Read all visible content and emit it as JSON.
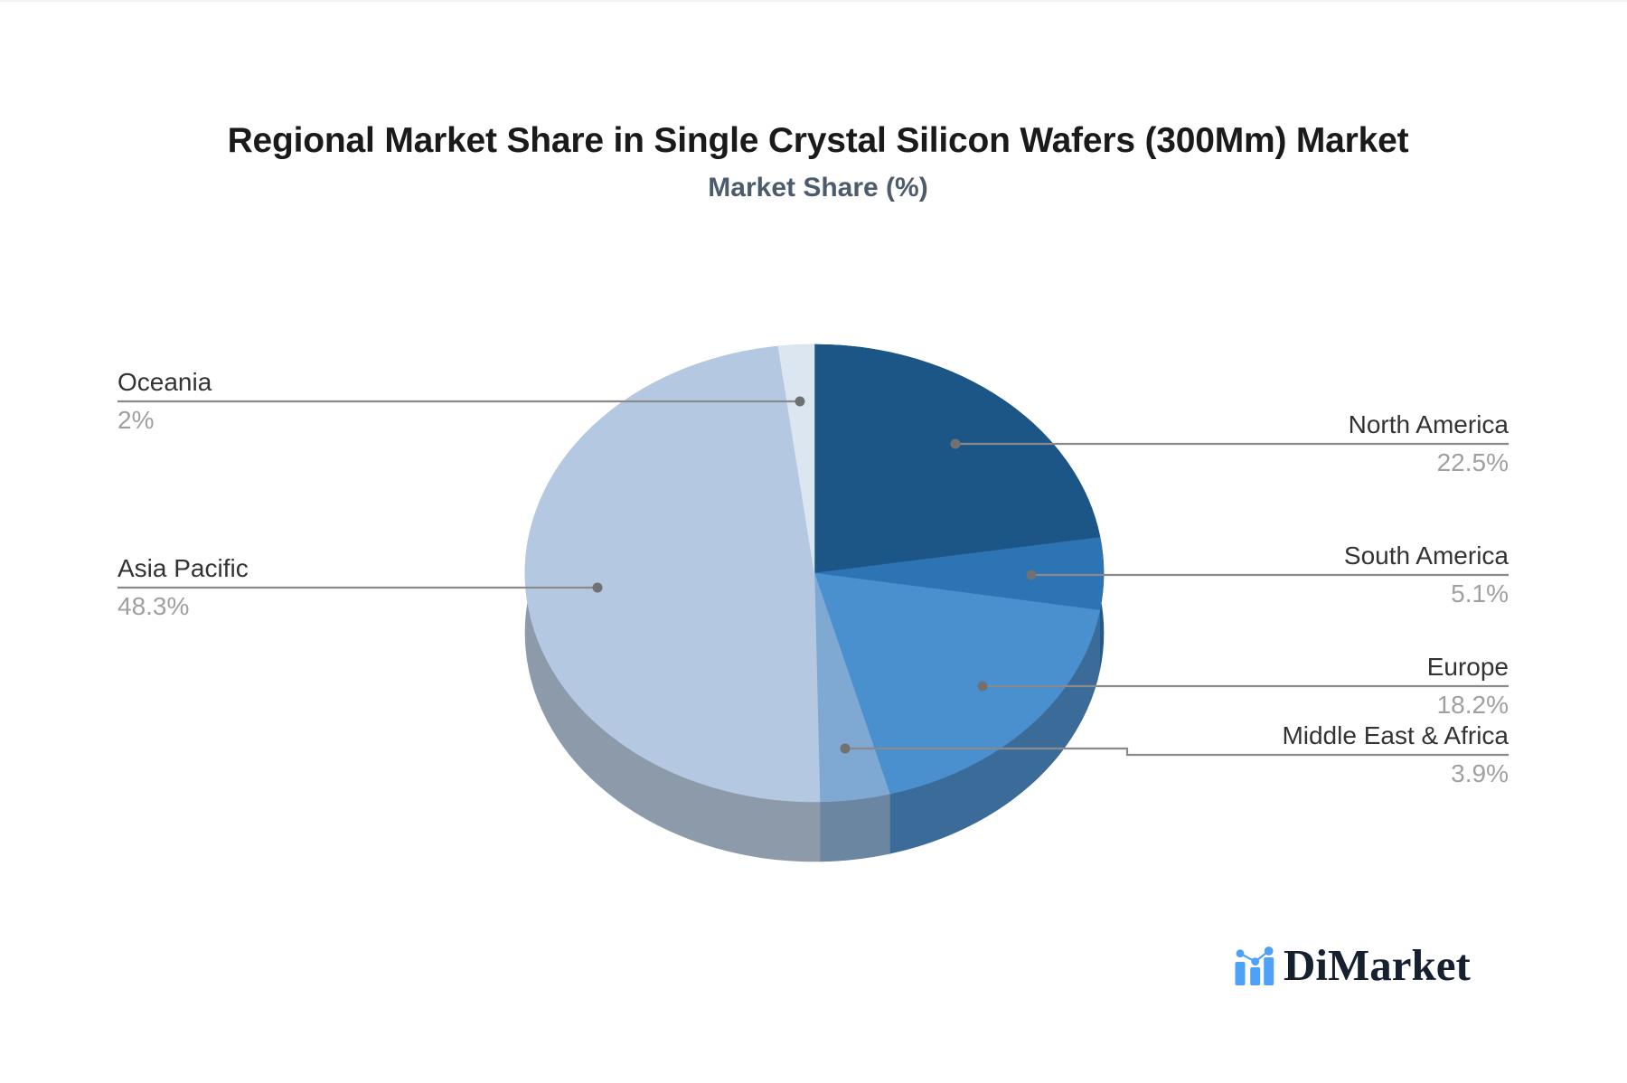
{
  "header": {
    "title": "Regional Market Share in Single Crystal Silicon Wafers (300Mm) Market",
    "subtitle": "Market Share (%)",
    "title_color": "#1a1a1a",
    "subtitle_color": "#4d5c6d"
  },
  "chart_data": {
    "type": "pie",
    "effect": "3d",
    "title": "Regional Market Share in Single Crystal Silicon Wafers (300Mm) Market",
    "subtitle": "Market Share (%)",
    "unit": "%",
    "direction": "clockwise",
    "start_angle_deg": 0,
    "legend_position": "none",
    "labels_layout": "callout-lines-left-right",
    "leader_line_color": "#8a8a8a",
    "leader_dot_color": "#717171",
    "label_color": "#333333",
    "value_color": "#a0a0a0",
    "slices": [
      {
        "name": "North America",
        "value": 22.5,
        "pct_label": "22.5%",
        "color": "#1b5687",
        "side_color": "#153f63",
        "label_side": "right"
      },
      {
        "name": "South America",
        "value": 5.1,
        "pct_label": "5.1%",
        "color": "#2d74b5",
        "side_color": "#235a8c",
        "label_side": "right"
      },
      {
        "name": "Europe",
        "value": 18.2,
        "pct_label": "18.2%",
        "color": "#4a8fce",
        "side_color": "#3a6b99",
        "label_side": "right"
      },
      {
        "name": "Middle East & Africa",
        "value": 3.9,
        "pct_label": "3.9%",
        "color": "#7fa8d2",
        "side_color": "#6b86a0",
        "label_side": "right"
      },
      {
        "name": "Asia Pacific",
        "value": 48.3,
        "pct_label": "48.3%",
        "color": "#b4c9e1",
        "side_color": "#8c9aaa",
        "label_side": "left"
      },
      {
        "name": "Oceania",
        "value": 2,
        "pct_label": "2%",
        "color": "#dce6f1",
        "side_color": "#a9b5c4",
        "label_side": "left"
      }
    ]
  },
  "branding": {
    "logo_text": "DiMarket",
    "logo_icon": "bar-chart-with-trend-dots-icon",
    "logo_text_color": "#16202f",
    "logo_accent_color": "#4da2f7"
  }
}
